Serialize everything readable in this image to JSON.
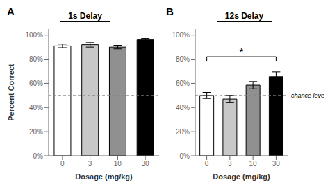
{
  "chart_data": [
    {
      "type": "bar",
      "title": "1s Delay",
      "panel_label": "A",
      "categories": [
        "0",
        "3",
        "10",
        "30"
      ],
      "values": [
        0.91,
        0.92,
        0.9,
        0.96
      ],
      "errors": [
        0.015,
        0.02,
        0.015,
        0.012
      ],
      "colors": [
        "#ffffff",
        "#c8c8c8",
        "#909090",
        "#000000"
      ],
      "xlabel": "Dosage (mg/kg)",
      "ylabel": "Percent Correct",
      "ylim": [
        0,
        1.05
      ],
      "yticks": [
        {
          "value": 0.0,
          "label": "0%"
        },
        {
          "value": 0.2,
          "label": "20%"
        },
        {
          "value": 0.4,
          "label": "40%"
        },
        {
          "value": 0.6,
          "label": "60%"
        },
        {
          "value": 0.8,
          "label": "80%"
        },
        {
          "value": 1.0,
          "label": "100%"
        }
      ],
      "chance_line": 0.5,
      "grid": false
    },
    {
      "type": "bar",
      "title": "12s Delay",
      "panel_label": "B",
      "categories": [
        "0",
        "3",
        "10",
        "30"
      ],
      "values": [
        0.5,
        0.47,
        0.585,
        0.655
      ],
      "errors": [
        0.025,
        0.03,
        0.03,
        0.04
      ],
      "colors": [
        "#ffffff",
        "#c8c8c8",
        "#909090",
        "#000000"
      ],
      "xlabel": "Dosage (mg/kg)",
      "ylim": [
        0,
        1.05
      ],
      "yticks": [
        {
          "value": 0.0,
          "label": "0%"
        },
        {
          "value": 0.2,
          "label": "20%"
        },
        {
          "value": 0.4,
          "label": "40%"
        },
        {
          "value": 0.6,
          "label": "60%"
        },
        {
          "value": 0.8,
          "label": "80%"
        },
        {
          "value": 1.0,
          "label": "100%"
        }
      ],
      "chance_line": 0.5,
      "chance_label": "chance level",
      "significance": {
        "from": "0",
        "to": "30",
        "y": 0.82,
        "label": "*"
      },
      "grid": false
    }
  ]
}
